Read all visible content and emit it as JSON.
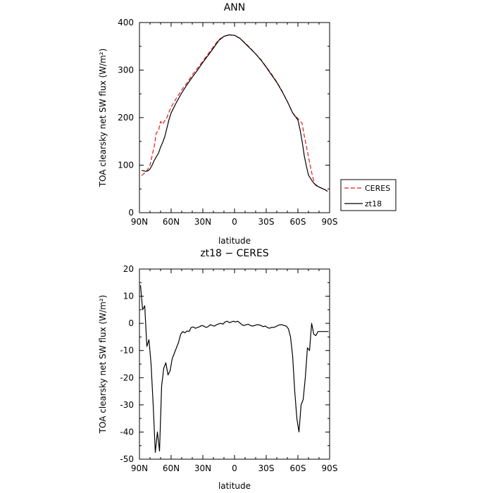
{
  "chart_data": [
    {
      "type": "line",
      "title": "ANN",
      "xlabel": "latitude",
      "ylabel": "TOA clearsky net SW flux (W/m²)",
      "xlim": [
        90,
        -90
      ],
      "ylim": [
        0,
        400
      ],
      "xticks": [
        90,
        60,
        30,
        0,
        -30,
        -60,
        -90
      ],
      "xtick_labels": [
        "90N",
        "60N",
        "30N",
        "0",
        "30S",
        "60S",
        "90S"
      ],
      "yticks": [
        0,
        100,
        200,
        300,
        400
      ],
      "legend": {
        "placement": "outside-right"
      },
      "series": [
        {
          "name": "CERES",
          "color": "#e41a1c",
          "dash": "dashed",
          "x": [
            88,
            86,
            84,
            82,
            80,
            78,
            76,
            74,
            72,
            70,
            68,
            66,
            64,
            62,
            60,
            55,
            50,
            45,
            40,
            35,
            30,
            25,
            20,
            15,
            10,
            5,
            0,
            -5,
            -10,
            -15,
            -20,
            -25,
            -30,
            -35,
            -40,
            -45,
            -50,
            -55,
            -60,
            -62,
            -64,
            -66,
            -68,
            -70,
            -72,
            -74,
            -76,
            -78,
            -80,
            -82,
            -84,
            -86,
            -88
          ],
          "y": [
            78,
            82,
            85,
            92,
            100,
            120,
            140,
            168,
            172,
            192,
            186,
            194,
            200,
            212,
            222,
            241,
            258,
            273,
            290,
            304,
            319,
            334,
            349,
            364,
            371,
            374,
            373,
            367,
            357,
            346,
            334,
            322,
            307,
            292,
            275,
            256,
            234,
            210,
            198,
            193,
            188,
            162,
            140,
            118,
            95,
            75,
            60,
            55,
            54,
            52,
            50,
            48,
            45
          ]
        },
        {
          "name": "zt18",
          "color": "#000000",
          "dash": "solid",
          "x": [
            88,
            86,
            84,
            82,
            80,
            78,
            76,
            74,
            72,
            70,
            68,
            66,
            64,
            62,
            60,
            55,
            50,
            45,
            40,
            35,
            30,
            25,
            20,
            15,
            10,
            5,
            0,
            -5,
            -10,
            -15,
            -20,
            -25,
            -30,
            -35,
            -40,
            -45,
            -50,
            -55,
            -60,
            -62,
            -64,
            -66,
            -68,
            -70,
            -72,
            -74,
            -76,
            -78,
            -80,
            -82,
            -84,
            -86,
            -88
          ],
          "y": [
            89,
            88,
            87,
            88,
            92,
            100,
            110,
            118,
            125,
            138,
            148,
            160,
            178,
            196,
            210,
            232,
            252,
            269,
            285,
            300,
            316,
            331,
            346,
            362,
            371,
            374,
            373,
            367,
            356,
            345,
            334,
            321,
            306,
            290,
            274,
            255,
            234,
            210,
            195,
            175,
            150,
            120,
            98,
            79,
            72,
            65,
            60,
            57,
            54,
            52,
            50,
            48,
            45
          ]
        }
      ]
    },
    {
      "type": "line",
      "title": "zt18 − CERES",
      "xlabel": "latitude",
      "ylabel": "TOA clearsky net SW flux (W/m²)",
      "xlim": [
        90,
        -90
      ],
      "ylim": [
        -50,
        20
      ],
      "xticks": [
        90,
        60,
        30,
        0,
        -30,
        -60,
        -90
      ],
      "xtick_labels": [
        "90N",
        "60N",
        "30N",
        "0",
        "30S",
        "60S",
        "90S"
      ],
      "yticks": [
        -50,
        -40,
        -30,
        -20,
        -10,
        0,
        10,
        20
      ],
      "series": [
        {
          "name": "zt18 − CERES",
          "color": "#000000",
          "dash": "solid",
          "x": [
            89,
            87,
            85,
            83,
            81,
            79,
            77,
            75,
            73,
            71,
            69,
            67,
            65,
            63,
            61,
            59,
            57,
            55,
            53,
            51,
            49,
            47,
            45,
            43,
            41,
            39,
            37,
            35,
            33,
            31,
            29,
            27,
            25,
            23,
            21,
            19,
            17,
            15,
            13,
            11,
            9,
            7,
            5,
            3,
            1,
            -1,
            -3,
            -5,
            -7,
            -9,
            -11,
            -13,
            -15,
            -17,
            -19,
            -21,
            -23,
            -25,
            -27,
            -29,
            -31,
            -33,
            -35,
            -37,
            -39,
            -41,
            -43,
            -45,
            -47,
            -49,
            -51,
            -53,
            -55,
            -57,
            -59,
            -61,
            -63,
            -65,
            -67,
            -69,
            -71,
            -73,
            -75,
            -77,
            -79,
            -81,
            -83,
            -85,
            -87,
            -89
          ],
          "y": [
            14,
            5,
            6.5,
            -8.5,
            -6,
            -15,
            -30,
            -47.5,
            -40,
            -47,
            -23,
            -16.5,
            -14.5,
            -19,
            -17.5,
            -13,
            -11,
            -9,
            -7,
            -4,
            -3,
            -3.5,
            -2.8,
            -3,
            -1.5,
            -1.3,
            -1.8,
            -1.5,
            -1.2,
            -0.8,
            -1,
            -1.5,
            -1.2,
            -0.5,
            -0.8,
            -1,
            -0.5,
            -0.2,
            0,
            -0.3,
            0.5,
            0.8,
            0.3,
            0.5,
            0.8,
            0.5,
            0.8,
            0.2,
            -0.5,
            -0.8,
            -0.5,
            -0.3,
            -0.8,
            -1,
            -0.8,
            -0.5,
            -0.5,
            -0.8,
            -1.2,
            -1,
            -1.5,
            -1.8,
            -1.5,
            -1.5,
            -1.2,
            -0.8,
            -0.5,
            -0.5,
            -0.8,
            -1,
            -2,
            -5,
            -12,
            -25,
            -35,
            -40,
            -30,
            -28,
            -20,
            -9,
            -10,
            0,
            -4,
            -4.5,
            -3,
            -3,
            -3,
            -3,
            -3,
            -3
          ]
        }
      ]
    }
  ],
  "legend_items": [
    {
      "name": "CERES",
      "color": "#e41a1c",
      "dash": "6,3"
    },
    {
      "name": "zt18",
      "color": "#000000",
      "dash": ""
    }
  ]
}
